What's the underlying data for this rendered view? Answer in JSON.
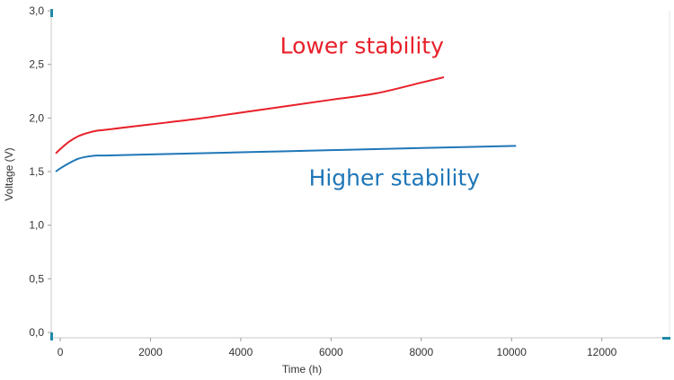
{
  "chart_data": {
    "type": "line",
    "title": "",
    "xlabel": "Time (h)",
    "ylabel": "Voltage (V)",
    "xlim": [
      -200,
      13500
    ],
    "ylim": [
      -0.05,
      3.0
    ],
    "x_ticks": [
      0,
      2000,
      4000,
      6000,
      8000,
      10000,
      12000
    ],
    "x_tick_labels": [
      "0",
      "2000",
      "4000",
      "6000",
      "8000",
      "10000",
      "12000"
    ],
    "y_ticks": [
      0.0,
      0.5,
      1.0,
      1.5,
      2.0,
      2.5,
      3.0
    ],
    "y_tick_labels": [
      "0,0",
      "0,5",
      "1,0",
      "1,5",
      "2,0",
      "2,5",
      "3,0"
    ],
    "grid": false,
    "legend": "none",
    "series": [
      {
        "color": "#e8202a",
        "x": [
          -100,
          0,
          200,
          400,
          600,
          800,
          1000,
          2000,
          3000,
          4000,
          5000,
          6000,
          7000,
          8000,
          8500
        ],
        "y": [
          1.67,
          1.71,
          1.78,
          1.83,
          1.86,
          1.88,
          1.89,
          1.94,
          1.99,
          2.05,
          2.11,
          2.17,
          2.23,
          2.33,
          2.38
        ]
      },
      {
        "color": "#1f77b8",
        "x": [
          -100,
          0,
          200,
          400,
          600,
          800,
          1000,
          2000,
          4000,
          6000,
          8000,
          10100
        ],
        "y": [
          1.5,
          1.53,
          1.58,
          1.62,
          1.64,
          1.65,
          1.65,
          1.66,
          1.68,
          1.7,
          1.72,
          1.74
        ]
      }
    ],
    "annotations": [
      {
        "text": "Lower stability",
        "color": "#e8202a",
        "x": 8500,
        "y": 2.6,
        "anchor": "end"
      },
      {
        "text": "Higher stability",
        "color": "#1f77b8",
        "x": 9300,
        "y": 1.37,
        "anchor": "end"
      }
    ]
  }
}
